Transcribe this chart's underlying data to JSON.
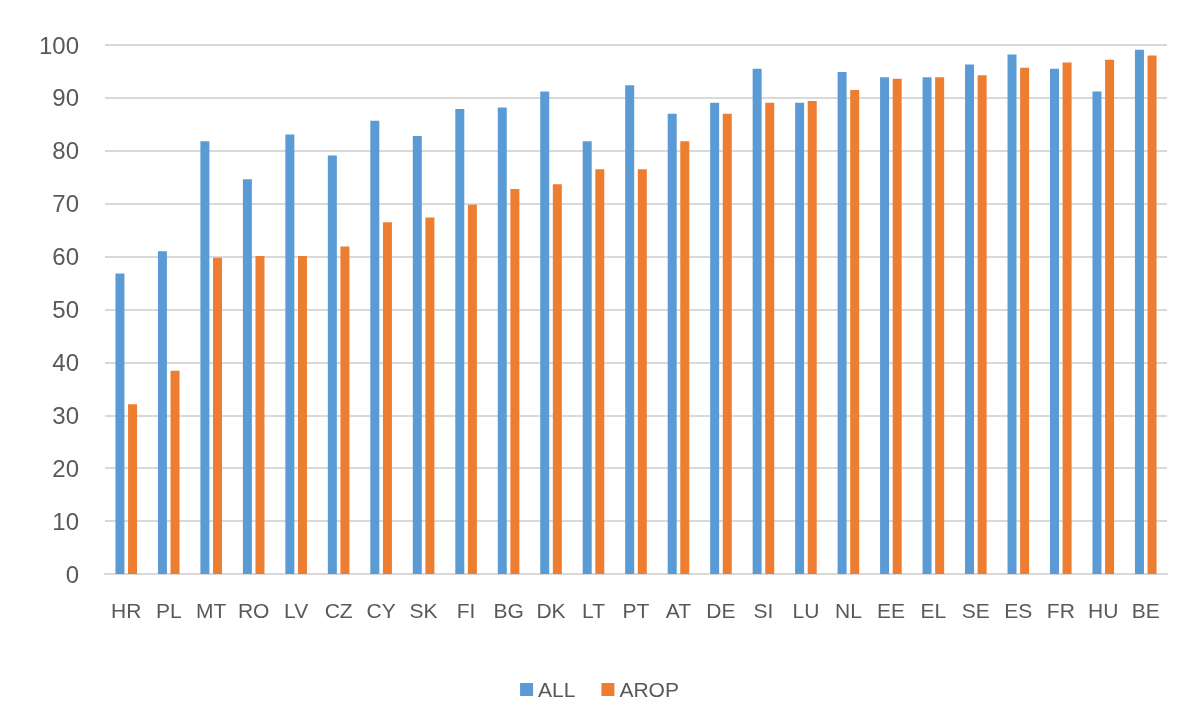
{
  "chart_data": {
    "type": "bar",
    "categories": [
      "HR",
      "PL",
      "MT",
      "RO",
      "LV",
      "CZ",
      "CY",
      "SK",
      "FI",
      "BG",
      "DK",
      "LT",
      "PT",
      "AT",
      "DE",
      "SI",
      "LU",
      "NL",
      "EE",
      "EL",
      "SE",
      "ES",
      "FR",
      "HU",
      "BE"
    ],
    "series": [
      {
        "name": "ALL",
        "color": "#5b9bd5",
        "values": [
          56.8,
          61.0,
          81.8,
          74.6,
          83.1,
          79.1,
          85.7,
          82.8,
          87.9,
          88.2,
          91.2,
          81.8,
          92.4,
          87.0,
          89.1,
          95.5,
          89.1,
          94.9,
          93.9,
          93.9,
          96.3,
          98.2,
          95.5,
          91.2,
          99.1
        ]
      },
      {
        "name": "AROP",
        "color": "#ed7d31",
        "values": [
          32.1,
          38.4,
          59.8,
          60.1,
          60.1,
          61.9,
          66.5,
          67.4,
          69.8,
          72.8,
          73.7,
          76.5,
          76.5,
          81.8,
          87.0,
          89.1,
          89.4,
          91.5,
          93.6,
          93.9,
          94.3,
          95.7,
          96.7,
          97.2,
          98.0
        ]
      }
    ],
    "ylim": [
      0,
      100
    ],
    "yticks": [
      0,
      10,
      20,
      30,
      40,
      50,
      60,
      70,
      80,
      90,
      100
    ],
    "grid": "y",
    "legend": "bottom"
  }
}
